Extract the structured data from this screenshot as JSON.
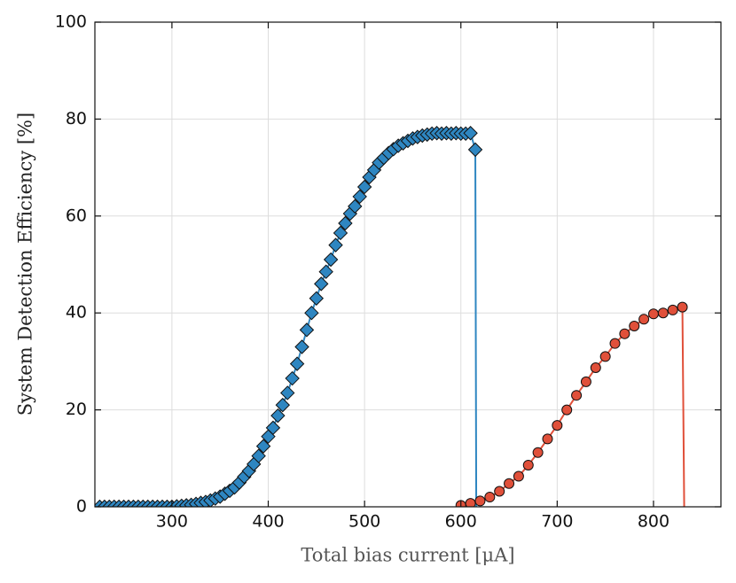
{
  "chart_data": {
    "type": "line",
    "xlabel": "Total bias current [μA]",
    "ylabel": "System Detection Efficiency [%]",
    "xlim": [
      220,
      870
    ],
    "ylim": [
      0,
      100
    ],
    "xticks": [
      300,
      400,
      500,
      600,
      700,
      800
    ],
    "yticks": [
      0,
      20,
      40,
      60,
      80,
      100
    ],
    "grid": true,
    "series": [
      {
        "color": "#2e86c1",
        "marker": "diamond",
        "x": [
          225,
          230,
          235,
          240,
          245,
          250,
          255,
          260,
          265,
          270,
          275,
          280,
          285,
          290,
          295,
          300,
          305,
          310,
          315,
          320,
          325,
          330,
          335,
          340,
          345,
          350,
          355,
          360,
          365,
          370,
          375,
          380,
          385,
          390,
          395,
          400,
          405,
          410,
          415,
          420,
          425,
          430,
          435,
          440,
          445,
          450,
          455,
          460,
          465,
          470,
          475,
          480,
          485,
          490,
          495,
          500,
          505,
          510,
          515,
          520,
          525,
          530,
          535,
          540,
          545,
          550,
          555,
          560,
          565,
          570,
          575,
          580,
          585,
          590,
          595,
          600,
          605,
          610,
          615,
          616
        ],
        "values": [
          0,
          0,
          0,
          0,
          0,
          0,
          0,
          0,
          0,
          0,
          0,
          0,
          0,
          0,
          0,
          0,
          0.1,
          0.2,
          0.3,
          0.4,
          0.6,
          0.8,
          1,
          1.3,
          1.7,
          2.1,
          2.7,
          3.3,
          4,
          5,
          6.2,
          7.4,
          8.8,
          10.5,
          12.5,
          14.5,
          16.3,
          18.8,
          21,
          23.5,
          26.5,
          29.5,
          33,
          36.5,
          40,
          43,
          46,
          48.5,
          51,
          54,
          56.5,
          58.5,
          60.5,
          62,
          64,
          66,
          68,
          69.5,
          71,
          72,
          73,
          73.8,
          74.5,
          75,
          75.5,
          76,
          76.3,
          76.6,
          76.8,
          77,
          77.1,
          77,
          77.1,
          77,
          77.1,
          77,
          77,
          77.1,
          73.7,
          -3
        ]
      },
      {
        "color": "#e0503a",
        "marker": "circle",
        "x": [
          600,
          610,
          620,
          630,
          640,
          650,
          660,
          670,
          680,
          690,
          700,
          710,
          720,
          730,
          740,
          750,
          760,
          770,
          780,
          790,
          800,
          810,
          820,
          830,
          832
        ],
        "values": [
          0.3,
          0.7,
          1.2,
          2,
          3.2,
          4.8,
          6.3,
          8.6,
          11.2,
          14,
          16.8,
          20,
          23,
          25.8,
          28.7,
          31,
          33.7,
          35.7,
          37.3,
          38.7,
          39.8,
          40,
          40.6,
          41.2,
          -3
        ]
      }
    ]
  }
}
